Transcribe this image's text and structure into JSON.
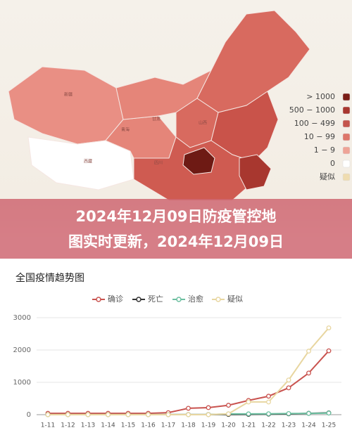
{
  "map": {
    "labels": [
      "新疆",
      "西藏",
      "青海",
      "甘肃",
      "四川",
      "山西"
    ],
    "legend": [
      {
        "label": "> 1000",
        "color": "#7a1d16"
      },
      {
        "label": "500 − 1000",
        "color": "#a8372f"
      },
      {
        "label": "100 − 499",
        "color": "#c4544c"
      },
      {
        "label": "10 − 99",
        "color": "#dd7569"
      },
      {
        "label": "1 − 9",
        "color": "#eea396"
      },
      {
        "label": "0",
        "color": "#ffffff"
      },
      {
        "label": "疑似",
        "color": "#efdcb0"
      }
    ]
  },
  "banner": {
    "lines": [
      "2024年12月09日防疫管控地",
      "图实时更新，2024年12月09日"
    ]
  },
  "chart_data": {
    "type": "line",
    "title": "全国疫情趋势图",
    "categories": [
      "1-11",
      "1-12",
      "1-13",
      "1-14",
      "1-15",
      "1-16",
      "1-17",
      "1-18",
      "1-19",
      "1-20",
      "1-21",
      "1-22",
      "1-23",
      "1-24",
      "1-25"
    ],
    "series": [
      {
        "name": "确诊",
        "color": "#c9534f",
        "values": [
          41,
          41,
          41,
          41,
          41,
          41,
          62,
          198,
          218,
          291,
          440,
          571,
          830,
          1287,
          1975
        ]
      },
      {
        "name": "死亡",
        "color": "#333333",
        "values": [
          1,
          1,
          1,
          1,
          1,
          1,
          2,
          3,
          3,
          6,
          9,
          17,
          25,
          41,
          56
        ]
      },
      {
        "name": "治愈",
        "color": "#6cbfa0",
        "values": [
          2,
          2,
          2,
          2,
          2,
          2,
          2,
          2,
          3,
          25,
          25,
          28,
          34,
          38,
          49
        ]
      },
      {
        "name": "疑似",
        "color": "#e8d6a0",
        "values": [
          0,
          0,
          0,
          0,
          0,
          0,
          0,
          0,
          0,
          27,
          393,
          393,
          1072,
          1965,
          2684
        ]
      }
    ],
    "ylim": [
      0,
      3000
    ],
    "yticks": [
      0,
      1000,
      2000,
      3000
    ],
    "grid": true
  }
}
